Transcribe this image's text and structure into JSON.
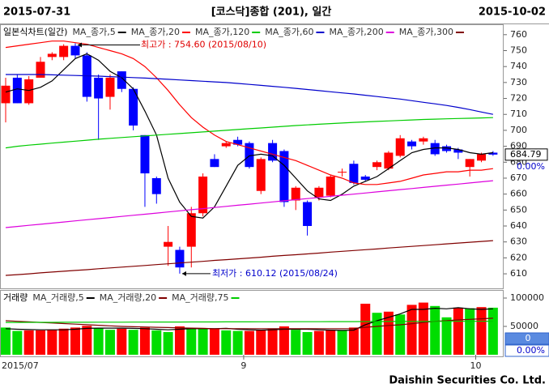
{
  "header": {
    "start_date": "2015-07-31",
    "title": "[코스닥]종합 (201), 일간",
    "end_date": "2015-10-02"
  },
  "footer": "Daishin Securities Co. Ltd.",
  "chart_data": [
    {
      "type": "candlestick",
      "legend_title": "일본식차트(일간)",
      "up_color": "#ff0000",
      "down_color": "#0000ff",
      "open": [
        717,
        733,
        717,
        733,
        746,
        746,
        753,
        747,
        733,
        721,
        737,
        726,
        697,
        670,
        627,
        625,
        627,
        648,
        682,
        690,
        694,
        692,
        662,
        692,
        687,
        656,
        655,
        658,
        659,
        674,
        679,
        671,
        677,
        676,
        684,
        693,
        693,
        692,
        690,
        688,
        677,
        681,
        686
      ],
      "high": [
        733,
        735,
        734,
        746,
        749,
        754,
        754.6,
        749,
        735,
        735,
        737,
        727,
        697,
        671,
        640,
        627,
        652,
        673,
        685,
        693,
        696,
        693,
        683,
        694,
        688,
        665,
        656,
        665,
        672,
        676,
        681,
        672,
        681,
        687,
        697,
        694,
        696,
        694,
        691,
        689,
        682,
        686,
        687
      ],
      "low": [
        705,
        717,
        716,
        733,
        744,
        744,
        745,
        718,
        694,
        713,
        724,
        700,
        652,
        654,
        615,
        610.12,
        614,
        646,
        677,
        689,
        690,
        676,
        660,
        680,
        652,
        650,
        634,
        656,
        658,
        671,
        666,
        668,
        675,
        675,
        683,
        688,
        691,
        684,
        686,
        682,
        671,
        680,
        684
      ],
      "close": [
        728,
        717,
        732,
        743,
        748,
        753,
        747,
        721,
        720,
        733,
        726,
        703,
        673,
        660,
        630,
        614,
        648,
        671,
        677,
        692,
        691,
        677,
        682,
        681,
        655,
        664,
        640,
        664,
        671,
        674,
        667,
        669,
        680,
        686,
        695,
        690,
        695,
        685,
        687,
        686,
        682,
        685,
        684.79
      ],
      "series": [
        {
          "name": "MA_종가,5",
          "color": "#000000",
          "values": [
            724,
            726,
            725,
            727,
            731,
            738,
            745,
            748,
            744,
            737,
            733,
            726,
            712,
            697,
            670,
            655,
            646,
            645,
            652,
            665,
            678,
            684,
            685,
            684,
            678,
            670,
            662,
            657,
            656,
            660,
            665,
            668,
            671,
            676,
            681,
            686,
            688,
            689,
            689,
            688,
            686,
            685,
            686
          ]
        },
        {
          "name": "MA_종가,20",
          "color": "#ff0000",
          "values": [
            752,
            753,
            754,
            755,
            756,
            756,
            755,
            754,
            752,
            750,
            748,
            745,
            740,
            733,
            725,
            716,
            708,
            702,
            697,
            693,
            691,
            689,
            687,
            685,
            683,
            681,
            678,
            675,
            672,
            670,
            667,
            666,
            666,
            667,
            668,
            670,
            672,
            673,
            674,
            674,
            675,
            675,
            676
          ]
        },
        {
          "name": "MA_종가,120",
          "color": "#00cc00",
          "values": [
            689,
            690,
            690.7,
            691.3,
            692,
            692.6,
            693.2,
            693.8,
            694.4,
            695,
            695.5,
            696,
            696.5,
            697,
            697.5,
            698,
            698.5,
            699,
            699.5,
            700,
            700.5,
            701,
            701.5,
            702,
            702.5,
            703,
            703.4,
            703.8,
            704.2,
            704.6,
            705,
            705.3,
            705.6,
            705.9,
            706.2,
            706.5,
            706.8,
            707,
            707.2,
            707.4,
            707.6,
            707.8,
            708
          ]
        },
        {
          "name": "MA_종가,60",
          "color": "#0000cc",
          "values": [
            735,
            735,
            735,
            735,
            734.8,
            734.6,
            734.4,
            734.2,
            734,
            733.7,
            733.4,
            733.1,
            732.8,
            732.4,
            732,
            731.6,
            731.2,
            730.8,
            730.4,
            730,
            729.4,
            728.8,
            728.2,
            727.6,
            727,
            726.3,
            725.6,
            724.9,
            724.2,
            723.5,
            722.8,
            722,
            721.2,
            720.4,
            719.6,
            718.6,
            717.6,
            716.6,
            715.6,
            714.4,
            713,
            711.5,
            710
          ]
        },
        {
          "name": "MA_종가,200",
          "color": "#dd00dd",
          "values": [
            639,
            639.7,
            640.4,
            641.1,
            641.8,
            642.5,
            643.2,
            643.9,
            644.6,
            645.3,
            646,
            646.7,
            647.4,
            648.1,
            648.8,
            649.5,
            650.2,
            650.9,
            651.6,
            652.3,
            653,
            653.7,
            654.4,
            655.1,
            655.8,
            656.5,
            657.2,
            657.9,
            658.6,
            659.3,
            660,
            660.7,
            661.4,
            662.1,
            662.8,
            663.5,
            664.2,
            664.9,
            665.6,
            666.3,
            667,
            667.7,
            668.4
          ]
        },
        {
          "name": "MA_종가,300",
          "color": "#800000",
          "values": [
            609,
            609.5,
            610,
            610.6,
            611.1,
            611.6,
            612.1,
            612.6,
            613.2,
            613.7,
            614.2,
            614.7,
            615.2,
            615.8,
            616.3,
            616.8,
            617.3,
            617.8,
            618.4,
            618.9,
            619.4,
            619.9,
            620.4,
            621,
            621.5,
            622,
            622.5,
            623,
            623.6,
            624.1,
            624.6,
            625.1,
            625.6,
            626.2,
            626.7,
            627.2,
            627.7,
            628.2,
            628.8,
            629.3,
            629.8,
            630.3,
            630.8
          ]
        }
      ],
      "ylim": [
        601.4,
        766
      ],
      "yticks": [
        610,
        620,
        630,
        640,
        650,
        660,
        670,
        680,
        690,
        700,
        710,
        720,
        730,
        740,
        750,
        760
      ],
      "last_value": 684.79,
      "change_label": "0.00%",
      "high_annotation": "최고가 : 754.60 (2015/08/10)",
      "high_color": "#e00000",
      "low_annotation": "최저가 : 610.12 (2015/08/24)",
      "low_color": "#0000cc"
    },
    {
      "type": "bar",
      "legend_title": "거래량",
      "categories": [
        "2015/07",
        null,
        null,
        null,
        null,
        null,
        null,
        null,
        null,
        null,
        null,
        null,
        null,
        null,
        null,
        null,
        null,
        null,
        null,
        null,
        null,
        "9",
        null,
        null,
        null,
        null,
        null,
        null,
        null,
        null,
        null,
        null,
        null,
        null,
        null,
        null,
        null,
        null,
        null,
        null,
        null,
        "10",
        null
      ],
      "values": [
        48000,
        42000,
        43000,
        43000,
        44000,
        46000,
        48000,
        51000,
        47000,
        44000,
        46000,
        44000,
        48000,
        43000,
        40000,
        50000,
        47000,
        46000,
        46000,
        43000,
        42000,
        42000,
        44000,
        46000,
        50000,
        44000,
        40000,
        42000,
        44000,
        43000,
        48000,
        90000,
        74000,
        76000,
        71000,
        88000,
        92000,
        86000,
        66000,
        83000,
        82000,
        84000,
        83000
      ],
      "colors": [
        "#00dd00",
        "#00dd00",
        "#ff0000",
        "#ff0000",
        "#ff0000",
        "#ff0000",
        "#ff0000",
        "#ff0000",
        "#00dd00",
        "#00dd00",
        "#ff0000",
        "#00dd00",
        "#ff0000",
        "#00dd00",
        "#00dd00",
        "#ff0000",
        "#00dd00",
        "#00dd00",
        "#ff0000",
        "#00dd00",
        "#00dd00",
        "#ff0000",
        "#ff0000",
        "#ff0000",
        "#ff0000",
        "#00dd00",
        "#00dd00",
        "#ff0000",
        "#ff0000",
        "#00dd00",
        "#ff0000",
        "#ff0000",
        "#00dd00",
        "#ff0000",
        "#00dd00",
        "#ff0000",
        "#ff0000",
        "#00dd00",
        "#00dd00",
        "#ff0000",
        "#00dd00",
        "#ff0000",
        "#00dd00"
      ],
      "series": [
        {
          "name": "MA_거래량,5",
          "color": "#000000",
          "values": [
            46000,
            45000,
            44500,
            44000,
            44000,
            44000,
            45000,
            46500,
            47000,
            47000,
            47000,
            46500,
            46000,
            45000,
            44000,
            45000,
            46000,
            46000,
            46000,
            46500,
            45000,
            44000,
            43500,
            44000,
            45000,
            45000,
            45000,
            44000,
            43500,
            43000,
            43500,
            53000,
            60000,
            66000,
            72000,
            80000,
            80000,
            82000,
            81000,
            83000,
            81000,
            80000,
            81000
          ]
        },
        {
          "name": "MA_거래량,20",
          "color": "#800000",
          "values": [
            60000,
            59000,
            58000,
            57000,
            56000,
            55000,
            54000,
            53000,
            52000,
            51000,
            50000,
            49500,
            49000,
            48500,
            48000,
            47500,
            47000,
            46500,
            46000,
            46000,
            46000,
            46000,
            46000,
            46000,
            46000,
            46000,
            46000,
            46000,
            46000,
            46000,
            46200,
            48500,
            50000,
            51500,
            52800,
            54800,
            57000,
            59000,
            60000,
            61500,
            62500,
            63500,
            64500
          ]
        },
        {
          "name": "MA_거래량,75",
          "color": "#00cc00",
          "values": [
            57000,
            57050,
            57100,
            57150,
            57200,
            57250,
            57300,
            57350,
            57400,
            57450,
            57500,
            57550,
            57600,
            57650,
            57700,
            57750,
            57800,
            57850,
            57900,
            57950,
            58000,
            58050,
            58100,
            58150,
            58200,
            58250,
            58300,
            58350,
            58400,
            58450,
            58500,
            58550,
            58600,
            58650,
            58700,
            58750,
            58800,
            58850,
            58900,
            58950,
            59000,
            59050,
            59100
          ]
        }
      ],
      "ylim": [
        0,
        110000
      ],
      "yticks": [
        50000,
        100000
      ],
      "current_value": 0,
      "change_label": "0.00%"
    }
  ]
}
